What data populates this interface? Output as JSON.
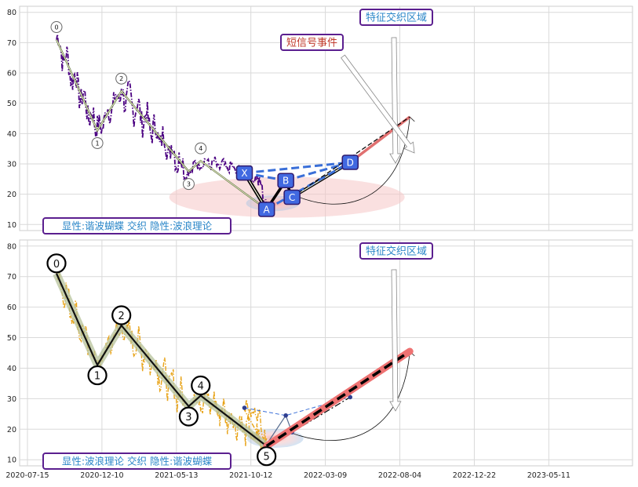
{
  "chart_data": [
    {
      "type": "line",
      "panel": "top",
      "ylim": [
        8,
        82
      ],
      "yticks": [
        10,
        20,
        30,
        40,
        50,
        60,
        70,
        80
      ],
      "grid": true,
      "price_color": "#4b0082",
      "price_style": "dash-dot",
      "waves": {
        "labels": [
          "0",
          "1",
          "2",
          "3",
          "4"
        ],
        "points": [
          [
            0,
            71
          ],
          [
            85,
            41
          ],
          [
            135,
            54
          ],
          [
            275,
            27.5
          ],
          [
            300,
            31
          ]
        ]
      },
      "pattern": {
        "labels": [
          "X",
          "A",
          "B",
          "C",
          "D"
        ],
        "points": [
          [
            391,
            27
          ],
          [
            437,
            15
          ],
          [
            477,
            24.5
          ],
          [
            490,
            19
          ],
          [
            611,
            30.5
          ]
        ]
      },
      "badge": "显性:谐波蝴蝶 交织 隐性:波浪理论",
      "annotation_short": "短信号事件",
      "annotation_zone": "特征交织区域",
      "projection_end": [
        735,
        45.5
      ]
    },
    {
      "type": "line",
      "panel": "bottom",
      "ylim": [
        8,
        82
      ],
      "yticks": [
        10,
        20,
        30,
        40,
        50,
        60,
        70,
        80
      ],
      "grid": true,
      "price_color": "#e8a317",
      "price_style": "dash-dot",
      "waves": {
        "labels": [
          "0",
          "1",
          "2",
          "3",
          "4",
          "5"
        ],
        "points": [
          [
            0,
            71
          ],
          [
            85,
            41
          ],
          [
            135,
            54
          ],
          [
            275,
            27.5
          ],
          [
            300,
            31
          ],
          [
            437,
            14.5
          ]
        ]
      },
      "pattern": {
        "points": [
          [
            391,
            27
          ],
          [
            437,
            15
          ],
          [
            477,
            24.5
          ],
          [
            490,
            19
          ],
          [
            611,
            30.5
          ]
        ]
      },
      "badge": "显性:波浪理论 交织 隐性:谐波蝴蝶",
      "annotation_zone": "特征交织区域",
      "projection_end": [
        735,
        45.5
      ],
      "x_tick_labels": [
        "2020-07-15",
        "2020-12-10",
        "2021-05-13",
        "2021-10-12",
        "2022-03-09",
        "2022-08-04",
        "2022-12-22",
        "2023-05-11"
      ]
    }
  ]
}
